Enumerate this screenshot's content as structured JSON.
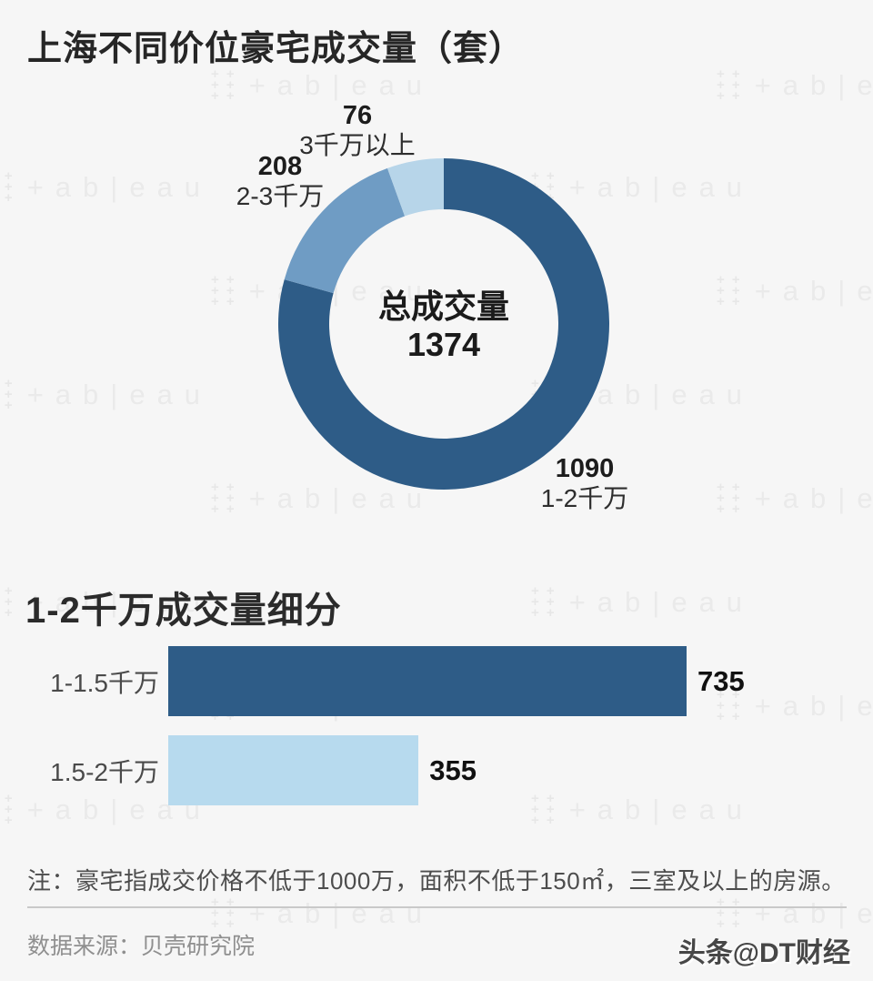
{
  "page": {
    "title": "上海不同价位豪宅成交量（套）",
    "background": "#f6f6f6"
  },
  "watermark": {
    "text": "+ab|eau",
    "logo_row": "+ +"
  },
  "donut": {
    "center_label": "总成交量",
    "center_value": "1374",
    "segments": [
      {
        "label": "1-2千万",
        "value": 1090,
        "color": "#2e5c87"
      },
      {
        "label": "2-3千万",
        "value": 208,
        "color": "#6f9cc4"
      },
      {
        "label": "3千万以上",
        "value": 76,
        "color": "#b7d5e9"
      }
    ]
  },
  "bar_section": {
    "title": "1-2千万成交量细分",
    "max_value": 735,
    "bars": [
      {
        "label": "1-1.5千万",
        "value": 735,
        "color": "#2e5c87"
      },
      {
        "label": "1.5-2千万",
        "value": 355,
        "color": "#b7daee"
      }
    ]
  },
  "footer": {
    "note": "注：豪宅指成交价格不低于1000万，面积不低于150㎡，三室及以上的房源。",
    "source": "数据来源：贝壳研究院",
    "credit": "头条@DT财经"
  },
  "chart_data": [
    {
      "type": "pie",
      "donut": true,
      "title": "上海不同价位豪宅成交量（套）",
      "labels": [
        "1-2千万",
        "2-3千万",
        "3千万以上"
      ],
      "values": [
        1090,
        208,
        76
      ],
      "colors": [
        "#2e5c87",
        "#6f9cc4",
        "#b7d5e9"
      ],
      "center_label": "总成交量",
      "center_total": 1374,
      "start_angle_deg": 0,
      "direction": "clockwise"
    },
    {
      "type": "bar",
      "orientation": "horizontal",
      "title": "1-2千万成交量细分",
      "categories": [
        "1-1.5千万",
        "1.5-2千万"
      ],
      "values": [
        735,
        355
      ],
      "colors": [
        "#2e5c87",
        "#b7daee"
      ],
      "xlim": [
        0,
        760
      ],
      "grid": false,
      "value_labels": true
    }
  ]
}
